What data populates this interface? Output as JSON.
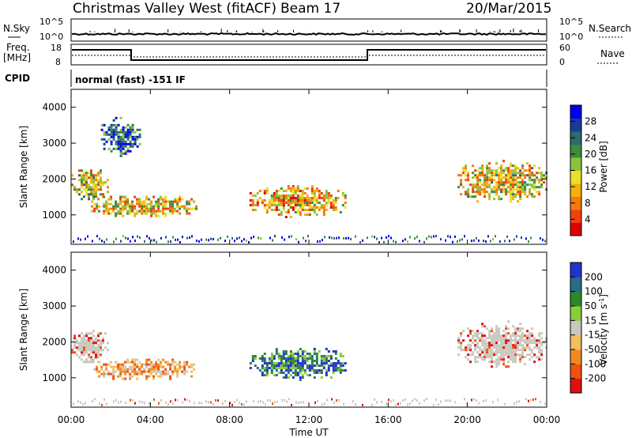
{
  "header": {
    "station": "Christmas Valley West (fitACF)",
    "beam": "Beam 17",
    "date": "20/Mar/2015"
  },
  "strip": {
    "nsky_label": "N.Sky",
    "nsearch_label": "N.Search",
    "nsky_ticks": [
      "10^5",
      "10^0"
    ],
    "nsearch_ticks": [
      "10^5",
      "10^0"
    ],
    "freq_label": "Freq.",
    "freq_unit": "[MHz]",
    "freq_ticks": [
      "18",
      "8"
    ],
    "nave_label": "Nave",
    "nave_ticks": [
      "60",
      "0"
    ],
    "cpid_label": "CPID",
    "cpid_text": "normal (fast) -151 IF"
  },
  "axes": {
    "ylabel": "Slant Range [km]",
    "xlabel": "Time UT",
    "xticks": [
      "00:00",
      "04:00",
      "08:00",
      "12:00",
      "16:00",
      "20:00",
      "00:00"
    ],
    "yticks": [
      "1000",
      "2000",
      "3000",
      "4000"
    ]
  },
  "chart_data": [
    {
      "type": "heatmap",
      "title": "",
      "xlabel": "Time UT",
      "ylabel": "Slant Range [km]",
      "xlim": [
        0,
        24
      ],
      "ylim": [
        180,
        4500
      ],
      "colorbar": {
        "label": "Power [dB]",
        "ticks": [
          "28",
          "24",
          "20",
          "16",
          "12",
          "8",
          "4"
        ],
        "colors": [
          "#0000ee",
          "#1a3a9c",
          "#2d6a6a",
          "#3a8c3a",
          "#8ac43a",
          "#e8e02a",
          "#f4b00a",
          "#f37a0c",
          "#f04010",
          "#e00000"
        ]
      },
      "regions": [
        {
          "t0": 0.0,
          "t1": 1.8,
          "r0": 1400,
          "r1": 2400,
          "level": 0.55
        },
        {
          "t0": 1.0,
          "t1": 6.3,
          "r0": 950,
          "r1": 1600,
          "level": 0.6
        },
        {
          "t0": 9.0,
          "t1": 13.9,
          "r0": 950,
          "r1": 1900,
          "level": 0.65
        },
        {
          "t0": 19.5,
          "t1": 24.0,
          "r0": 1300,
          "r1": 2600,
          "level": 0.55
        },
        {
          "t0": 1.5,
          "t1": 3.5,
          "r0": 2600,
          "r1": 3800,
          "level": 0.2
        }
      ]
    },
    {
      "type": "heatmap",
      "title": "",
      "xlabel": "Time UT",
      "ylabel": "Slant Range [km]",
      "xlim": [
        0,
        24
      ],
      "ylim": [
        180,
        4500
      ],
      "colorbar": {
        "label": "Velocity [m s^-1]",
        "ticks": [
          "200",
          "100",
          "50",
          "15",
          "-15",
          "-50",
          "-100",
          "-200"
        ],
        "colors": [
          "#2233cc",
          "#2a6a8a",
          "#2a8a2a",
          "#8acc3a",
          "#c8c8c0",
          "#f0c060",
          "#f08a20",
          "#f05010",
          "#e01010"
        ]
      },
      "regions": [
        {
          "t0": 0.0,
          "t1": 1.8,
          "r0": 1400,
          "r1": 2400,
          "class": "low"
        },
        {
          "t0": 1.0,
          "t1": 6.3,
          "r0": 950,
          "r1": 1600,
          "class": "negative"
        },
        {
          "t0": 9.0,
          "t1": 13.9,
          "r0": 950,
          "r1": 1900,
          "class": "positive"
        },
        {
          "t0": 19.5,
          "t1": 24.0,
          "r0": 1300,
          "r1": 2600,
          "class": "low"
        }
      ]
    }
  ]
}
